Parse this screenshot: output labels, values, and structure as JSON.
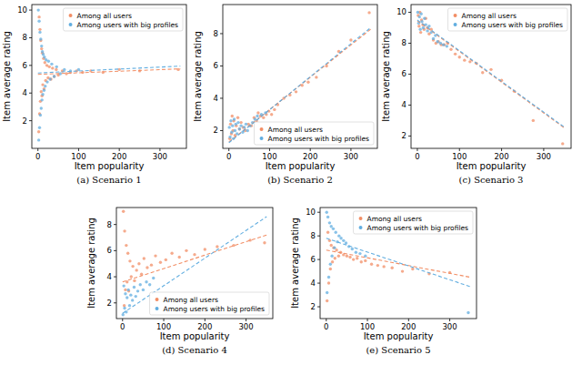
{
  "chart_data": [
    {
      "type": "scatter",
      "title": "(a) Scenario 1",
      "x_label": "Item popularity",
      "y_label": "Item average rating",
      "xlim": [
        -15,
        365
      ],
      "ylim": [
        0,
        10.4
      ],
      "xticks": [
        0,
        100,
        200,
        300
      ],
      "yticks": [
        2,
        4,
        6,
        8,
        10
      ],
      "grid": false,
      "legend": "upper right",
      "series": [
        {
          "name": "Among all users",
          "color": "#f28e65",
          "type": "scatter",
          "marker": "o",
          "x": [
            2,
            3,
            4,
            5,
            6,
            7,
            8,
            9,
            10,
            11,
            12,
            14,
            15,
            17,
            19,
            22,
            25,
            28,
            32,
            36,
            40,
            45,
            50,
            60,
            70,
            80,
            95,
            110,
            130,
            160,
            200,
            250,
            345
          ],
          "values": [
            1.2,
            9.5,
            2.5,
            8.6,
            3.4,
            7.8,
            4.1,
            7.2,
            3.8,
            6.9,
            4.6,
            6.5,
            4.3,
            6.2,
            4.9,
            6.0,
            5.1,
            5.9,
            5.0,
            5.8,
            5.2,
            5.7,
            5.3,
            5.6,
            5.4,
            5.5,
            5.6,
            5.5,
            5.6,
            5.5,
            5.7,
            5.6,
            5.7
          ]
        },
        {
          "name": "Among users with big profiles",
          "color": "#62aee0",
          "type": "scatter",
          "marker": "o",
          "x": [
            1,
            2,
            3,
            4,
            5,
            6,
            7,
            8,
            9,
            10,
            11,
            12,
            13,
            15,
            16,
            18,
            20,
            23,
            26,
            30,
            34,
            40,
            46,
            55,
            65,
            80,
            100
          ],
          "values": [
            10.0,
            0.6,
            9.2,
            1.5,
            8.4,
            2.4,
            7.9,
            2.9,
            7.4,
            3.5,
            7.0,
            3.9,
            6.8,
            4.2,
            6.6,
            4.5,
            6.4,
            4.8,
            6.3,
            5.0,
            6.1,
            5.2,
            5.9,
            5.4,
            5.7,
            5.6,
            5.7
          ]
        },
        {
          "color": "#f28e65",
          "type": "line",
          "line_style": "dashed",
          "x": [
            0,
            350
          ],
          "values": [
            5.35,
            5.75
          ]
        },
        {
          "color": "#62aee0",
          "type": "line",
          "line_style": "dashed",
          "x": [
            0,
            350
          ],
          "values": [
            5.45,
            5.95
          ]
        }
      ]
    },
    {
      "type": "scatter",
      "title": "(b) Scenario 2",
      "x_label": "Item popularity",
      "y_label": "Item average rating",
      "xlim": [
        -15,
        365
      ],
      "ylim": [
        0.9,
        9.8
      ],
      "xticks": [
        0,
        100,
        200,
        300
      ],
      "yticks": [
        2,
        4,
        6,
        8
      ],
      "grid": false,
      "legend": "lower right",
      "series": [
        {
          "name": "Among all users",
          "color": "#f28e65",
          "type": "scatter",
          "marker": "o",
          "x": [
            2,
            4,
            6,
            8,
            10,
            12,
            15,
            18,
            22,
            26,
            30,
            35,
            40,
            48,
            55,
            62,
            68,
            72,
            78,
            85,
            92,
            98,
            105,
            112,
            120,
            135,
            150,
            165,
            180,
            195,
            215,
            240,
            270,
            300,
            345
          ],
          "values": [
            1.5,
            2.4,
            1.8,
            2.9,
            2.0,
            2.6,
            1.7,
            2.3,
            2.8,
            2.1,
            2.5,
            2.2,
            2.0,
            2.4,
            2.3,
            2.8,
            2.6,
            3.1,
            2.9,
            2.8,
            3.0,
            3.2,
            3.0,
            3.3,
            3.6,
            4.0,
            4.2,
            4.4,
            4.8,
            5.0,
            5.3,
            6.0,
            6.9,
            7.6,
            9.3
          ]
        },
        {
          "name": "Among users with big profiles",
          "color": "#62aee0",
          "type": "scatter",
          "marker": "o",
          "x": [
            1,
            3,
            5,
            7,
            9,
            11,
            13,
            15,
            17,
            20,
            23,
            26,
            30,
            34,
            38,
            42,
            46,
            52,
            58,
            64,
            70,
            80,
            90
          ],
          "values": [
            2.2,
            1.6,
            2.6,
            1.9,
            2.3,
            1.5,
            2.7,
            2.0,
            2.4,
            1.8,
            2.5,
            2.1,
            2.3,
            1.9,
            2.2,
            2.4,
            2.0,
            2.3,
            2.5,
            2.7,
            2.9,
            3.0,
            3.1
          ]
        },
        {
          "color": "#f28e65",
          "type": "line",
          "line_style": "dashed",
          "x": [
            0,
            350
          ],
          "values": [
            1.3,
            8.3
          ]
        },
        {
          "color": "#62aee0",
          "type": "line",
          "line_style": "dashed",
          "x": [
            0,
            350
          ],
          "values": [
            1.25,
            8.4
          ]
        }
      ]
    },
    {
      "type": "scatter",
      "title": "(c) Scenario 3",
      "x_label": "Item popularity",
      "y_label": "Item average rating",
      "xlim": [
        -15,
        365
      ],
      "ylim": [
        1.2,
        10.5
      ],
      "xticks": [
        0,
        100,
        200,
        300
      ],
      "yticks": [
        2,
        4,
        6,
        8,
        10
      ],
      "grid": false,
      "legend": "upper right",
      "series": [
        {
          "name": "Among all users",
          "color": "#f28e65",
          "type": "scatter",
          "marker": "o",
          "x": [
            2,
            4,
            6,
            8,
            10,
            13,
            16,
            20,
            24,
            28,
            33,
            38,
            44,
            50,
            57,
            64,
            72,
            80,
            90,
            100,
            112,
            125,
            140,
            155,
            175,
            200,
            230,
            275,
            345
          ],
          "values": [
            9.8,
            9.1,
            10.0,
            8.7,
            9.5,
            9.2,
            8.9,
            9.6,
            9.0,
            8.6,
            8.9,
            8.2,
            8.0,
            8.1,
            7.9,
            7.9,
            8.0,
            7.6,
            7.3,
            7.1,
            6.9,
            6.8,
            6.7,
            6.1,
            6.3,
            5.6,
            4.9,
            3.0,
            1.5
          ]
        },
        {
          "name": "Among users with big profiles",
          "color": "#62aee0",
          "type": "scatter",
          "marker": "o",
          "x": [
            1,
            3,
            5,
            7,
            9,
            11,
            14,
            17,
            20,
            24,
            28,
            33,
            38,
            43,
            48,
            55,
            62,
            70
          ],
          "values": [
            10.0,
            9.3,
            9.7,
            8.9,
            9.9,
            9.4,
            9.0,
            9.6,
            9.2,
            8.8,
            9.1,
            8.7,
            8.3,
            8.5,
            8.1,
            8.0,
            7.9,
            7.8
          ]
        },
        {
          "color": "#f28e65",
          "type": "line",
          "line_style": "dashed",
          "x": [
            0,
            350
          ],
          "values": [
            9.45,
            2.5
          ]
        },
        {
          "color": "#62aee0",
          "type": "line",
          "line_style": "dashed",
          "x": [
            0,
            350
          ],
          "values": [
            9.5,
            2.55
          ]
        }
      ]
    },
    {
      "type": "scatter",
      "title": "(d) Scenario 4",
      "x_label": "Item popularity",
      "y_label": "Item average rating",
      "xlim": [
        -15,
        365
      ],
      "ylim": [
        0.8,
        9.3
      ],
      "xticks": [
        0,
        100,
        200,
        300
      ],
      "yticks": [
        2,
        4,
        6,
        8
      ],
      "grid": false,
      "legend": "lower right",
      "series": [
        {
          "name": "Among all users",
          "color": "#f28e65",
          "type": "scatter",
          "marker": "o",
          "x": [
            2,
            4,
            5,
            7,
            9,
            11,
            13,
            15,
            18,
            21,
            25,
            29,
            34,
            40,
            46,
            52,
            60,
            70,
            80,
            92,
            105,
            120,
            138,
            155,
            175,
            200,
            230,
            270,
            310,
            345
          ],
          "values": [
            9.0,
            1.8,
            7.5,
            3.0,
            6.4,
            3.6,
            5.8,
            2.9,
            5.2,
            4.0,
            4.8,
            3.7,
            4.5,
            5.0,
            4.2,
            5.4,
            4.7,
            4.9,
            5.6,
            5.1,
            5.3,
            5.8,
            5.5,
            6.0,
            5.7,
            6.1,
            6.3,
            6.4,
            6.8,
            6.6
          ]
        },
        {
          "name": "Among users with big profiles",
          "color": "#62aee0",
          "type": "scatter",
          "marker": "o",
          "x": [
            1,
            3,
            5,
            7,
            9,
            11,
            14,
            17,
            20,
            24,
            28,
            32,
            37,
            43,
            50,
            58,
            66,
            75
          ],
          "values": [
            1.1,
            3.3,
            1.6,
            2.7,
            1.3,
            2.4,
            3.0,
            1.8,
            2.6,
            2.2,
            3.2,
            2.5,
            2.9,
            3.4,
            3.0,
            3.6,
            3.4,
            3.9
          ]
        },
        {
          "color": "#f28e65",
          "type": "line",
          "line_style": "dashed",
          "x": [
            0,
            350
          ],
          "values": [
            3.6,
            7.2
          ]
        },
        {
          "color": "#62aee0",
          "type": "line",
          "line_style": "dashed",
          "x": [
            0,
            350
          ],
          "values": [
            1.2,
            8.6
          ]
        }
      ]
    },
    {
      "type": "scatter",
      "title": "(e) Scenario 5",
      "x_label": "Item popularity",
      "y_label": "Item average rating",
      "xlim": [
        -15,
        365
      ],
      "ylim": [
        1,
        10.4
      ],
      "xticks": [
        0,
        100,
        200,
        300
      ],
      "yticks": [
        2,
        4,
        6,
        8,
        10
      ],
      "grid": false,
      "legend": "upper right",
      "series": [
        {
          "name": "Among all users",
          "color": "#f28e65",
          "type": "scatter",
          "marker": "o",
          "x": [
            2,
            4,
            6,
            8,
            10,
            12,
            15,
            18,
            21,
            25,
            30,
            35,
            42,
            50,
            58,
            66,
            75,
            85,
            95,
            110,
            125,
            140,
            160,
            185,
            210,
            250,
            300
          ],
          "values": [
            2.5,
            8.3,
            4.0,
            7.6,
            5.2,
            7.2,
            5.8,
            7.0,
            6.1,
            6.8,
            6.3,
            6.6,
            6.4,
            6.3,
            6.2,
            6.0,
            6.1,
            5.8,
            5.9,
            5.6,
            5.5,
            5.4,
            5.3,
            5.0,
            5.2,
            4.8,
            4.9
          ]
        },
        {
          "name": "Among users with big profiles",
          "color": "#62aee0",
          "type": "scatter",
          "marker": "o",
          "x": [
            1,
            2,
            4,
            6,
            8,
            10,
            12,
            14,
            17,
            20,
            23,
            27,
            31,
            36,
            42,
            48,
            55,
            63,
            72,
            82,
            95,
            345
          ],
          "values": [
            10.0,
            3.2,
            9.6,
            4.5,
            9.1,
            5.6,
            8.8,
            6.3,
            8.6,
            7.0,
            8.3,
            7.5,
            8.0,
            7.8,
            7.6,
            7.4,
            7.1,
            6.9,
            6.6,
            6.5,
            6.3,
            1.5
          ]
        },
        {
          "color": "#f28e65",
          "type": "line",
          "line_style": "dashed",
          "x": [
            0,
            350
          ],
          "values": [
            6.8,
            4.5
          ]
        },
        {
          "color": "#62aee0",
          "type": "line",
          "line_style": "dashed",
          "x": [
            0,
            350
          ],
          "values": [
            7.8,
            3.7
          ]
        }
      ]
    }
  ]
}
